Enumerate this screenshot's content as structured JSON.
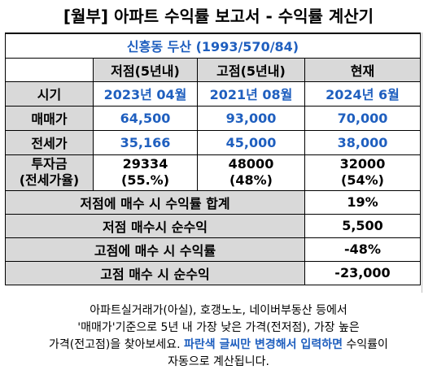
{
  "title": "[월부] 아파트 수익률 보고서 - 수익률 계산기",
  "property": "신흥동 두산 (1993/570/84)",
  "columns": [
    "저점(5년내)",
    "고점(5년내)",
    "현재"
  ],
  "rows": {
    "period": {
      "label": "시기",
      "values": [
        "2023년 04월",
        "2021년 08월",
        "2024년 6월"
      ]
    },
    "sale": {
      "label": "매매가",
      "values": [
        "64,500",
        "93,000",
        "70,000"
      ]
    },
    "jeonse": {
      "label": "전세가",
      "values": [
        "35,166",
        "45,000",
        "38,000"
      ]
    },
    "investment": {
      "label_line1": "투자금",
      "label_line2": "(전세가율)",
      "amounts": [
        "29334",
        "48000",
        "32000"
      ],
      "ratios": [
        "(55.%)",
        "(48%)",
        "(54%)"
      ]
    }
  },
  "summary": [
    {
      "label": "저점에 매수 시 수익률 합계",
      "value": "19%"
    },
    {
      "label": "저점 매수시 순수익",
      "value": "5,500"
    },
    {
      "label": "고점에 매수 시 수익률",
      "value": "-48%"
    },
    {
      "label": "고점 매수 시 순수익",
      "value": "-23,000"
    }
  ],
  "note": {
    "line1": "아파트실거래가(아실), 호갱노노, 네이버부동산 등에서",
    "line2": "'매매가'기준으로 5년 내 가장 낮은 가격(전저점), 가장 높은",
    "line3_prefix": "가격(전고점)을 찾아보세요. ",
    "line3_highlight": "파란색 글씨만 변경해서 입력하면",
    "line3_suffix": " 수익률이",
    "line4": "자동으로 계산됩니다."
  },
  "colors": {
    "accent_blue": "#1f5fbf",
    "header_gray": "#d9d9d9"
  }
}
